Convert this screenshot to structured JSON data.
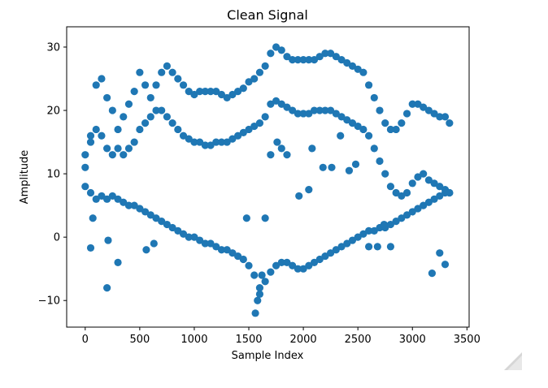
{
  "chart_data": {
    "type": "scatter",
    "title": "Clean Signal",
    "xlabel": "Sample Index",
    "ylabel": "Amplitude",
    "xlim": [
      -170,
      3520
    ],
    "ylim": [
      -14.2,
      33.2
    ],
    "xticks": [
      0,
      500,
      1000,
      1500,
      2000,
      2500,
      3000,
      3500
    ],
    "yticks": [
      -10,
      0,
      10,
      20,
      30
    ],
    "xtick_labels": [
      "0",
      "500",
      "1000",
      "1500",
      "2000",
      "2500",
      "3000",
      "3500"
    ],
    "ytick_labels": [
      "−10",
      "0",
      "10",
      "20",
      "30"
    ],
    "grid": false,
    "legend": false,
    "marker_color": "#1f77b4",
    "series": [
      {
        "x": [
          0,
          50,
          100,
          150,
          200,
          250,
          300,
          350,
          400,
          450,
          500,
          550,
          600,
          650,
          700,
          750,
          800,
          850,
          900,
          950,
          1000,
          1050,
          1100,
          1150,
          1200,
          1250,
          1300,
          1350,
          1400,
          1450,
          1500,
          1550,
          1600,
          1650,
          1700,
          1750,
          1800,
          1850,
          1900,
          1950,
          2000,
          2050,
          2100,
          2150,
          2200,
          2250,
          2300,
          2350,
          2400,
          2450,
          2500,
          2550,
          2600,
          2650,
          2700,
          2750,
          2800,
          2850,
          2900,
          2950,
          3000,
          3050,
          3100,
          3150,
          3200,
          3250,
          3300,
          3340
        ],
        "y": [
          8,
          7,
          6,
          6.5,
          6,
          6.5,
          6,
          5.5,
          5,
          5,
          4.5,
          4,
          3.5,
          3,
          2.5,
          2,
          1.5,
          1,
          0.5,
          0,
          0,
          -0.5,
          -1,
          -1,
          -1.5,
          -2,
          -2,
          -2.5,
          -3,
          -3.5,
          -4.5,
          -6,
          -8,
          -7,
          -5.5,
          -4.5,
          -4,
          -4,
          -4.5,
          -5,
          -5,
          -4.5,
          -4,
          -3.5,
          -3,
          -2.5,
          -2,
          -1.5,
          -1,
          -0.5,
          0,
          0.5,
          1,
          1,
          1.5,
          1.5,
          2,
          2.5,
          3,
          3.5,
          4,
          4.5,
          5,
          5.5,
          6,
          6.5,
          7,
          7
        ]
      },
      {
        "x": [
          0,
          50,
          100,
          150,
          200,
          250,
          300,
          350,
          400,
          450,
          500,
          550,
          600,
          650,
          700,
          750,
          800,
          850,
          900,
          950,
          1000,
          1050,
          1100,
          1150,
          1200,
          1250,
          1300,
          1350,
          1400,
          1450,
          1500,
          1550,
          1600,
          1650,
          1700,
          1750,
          1800,
          1850,
          1900,
          1950,
          2000,
          2050,
          2100,
          2150,
          2200,
          2250,
          2300,
          2350,
          2400,
          2450,
          2500,
          2550,
          2600,
          2650,
          2700,
          2750,
          2800,
          2850,
          2900,
          2950,
          3000,
          3050,
          3100,
          3150,
          3200,
          3250,
          3300,
          3340
        ],
        "y": [
          11,
          16,
          24,
          25,
          22,
          20,
          17,
          19,
          21,
          23,
          26,
          24,
          22,
          24,
          26,
          27,
          26,
          25,
          24,
          23,
          22.5,
          23,
          23,
          23,
          23,
          22.5,
          22,
          22.5,
          23,
          23.5,
          24.5,
          25,
          26,
          27,
          29,
          30,
          29.5,
          28.5,
          28,
          28,
          28,
          28,
          28,
          28.5,
          29,
          29,
          28.5,
          28,
          27.5,
          27,
          26.5,
          26,
          24,
          22,
          20,
          18,
          17,
          17,
          18,
          19.5,
          21,
          21,
          20.5,
          20,
          19.5,
          19,
          19,
          18
        ]
      },
      {
        "x": [
          0,
          50,
          100,
          150,
          200,
          250,
          300,
          350,
          400,
          450,
          500,
          550,
          600,
          650,
          700,
          750,
          800,
          850,
          900,
          950,
          1000,
          1050,
          1100,
          1150,
          1200,
          1250,
          1300,
          1350,
          1400,
          1450,
          1500,
          1550,
          1600,
          1650,
          1700,
          1750,
          1800,
          1850,
          1900,
          1950,
          2000,
          2050,
          2100,
          2150,
          2200,
          2250,
          2300,
          2350,
          2400,
          2450,
          2500,
          2550,
          2600,
          2650,
          2700,
          2750,
          2800,
          2850,
          2900,
          2950,
          3000,
          3050,
          3100,
          3150,
          3200,
          3250,
          3300,
          3340
        ],
        "y": [
          13,
          15,
          17,
          16,
          14,
          13,
          14,
          13,
          14,
          15,
          17,
          18,
          19,
          20,
          20,
          19,
          18,
          17,
          16,
          15.5,
          15,
          15,
          14.5,
          14.5,
          15,
          15,
          15,
          15.5,
          16,
          16.5,
          17,
          17.5,
          18,
          19,
          21,
          21.5,
          21,
          20.5,
          20,
          19.5,
          19.5,
          19.5,
          20,
          20,
          20,
          20,
          19.5,
          19,
          18.5,
          18,
          17.5,
          17,
          16,
          14,
          12,
          10,
          8,
          7,
          6.5,
          7,
          8.5,
          9.5,
          10,
          9,
          8.5,
          8,
          7.5,
          7
        ]
      },
      {
        "x": [
          50,
          70,
          200,
          210,
          300,
          560,
          630,
          1480,
          1560,
          1580,
          1600,
          1620,
          1650,
          1700,
          1760,
          1800,
          1850,
          1960,
          2050,
          2080,
          2180,
          2260,
          2340,
          2420,
          2480,
          2600,
          2680,
          2740,
          2800,
          3180,
          3250,
          3300
        ],
        "y": [
          -1.7,
          3,
          -8,
          -0.5,
          -4,
          -2,
          -1,
          3,
          -12,
          -10,
          -9,
          -6,
          3,
          13,
          15,
          14,
          13,
          6.5,
          7.5,
          14,
          11,
          11,
          16,
          10.5,
          11.5,
          -1.5,
          -1.5,
          2,
          -1.5,
          -5.7,
          -2.5,
          -4.3
        ]
      }
    ]
  }
}
